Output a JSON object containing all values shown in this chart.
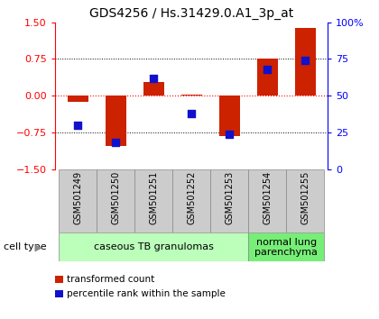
{
  "title": "GDS4256 / Hs.31429.0.A1_3p_at",
  "samples": [
    "GSM501249",
    "GSM501250",
    "GSM501251",
    "GSM501252",
    "GSM501253",
    "GSM501254",
    "GSM501255"
  ],
  "transformed_count": [
    -0.13,
    -1.02,
    0.28,
    0.02,
    -0.82,
    0.75,
    1.38
  ],
  "percentile_rank": [
    30,
    18,
    62,
    38,
    24,
    68,
    74
  ],
  "ylim_left": [
    -1.5,
    1.5
  ],
  "ylim_right": [
    0,
    100
  ],
  "yticks_left": [
    -1.5,
    -0.75,
    0,
    0.75,
    1.5
  ],
  "yticks_right": [
    0,
    25,
    50,
    75,
    100
  ],
  "ytick_labels_right": [
    "0",
    "25",
    "50",
    "75",
    "100%"
  ],
  "dotted_hlines": [
    0.75,
    -0.75
  ],
  "bar_color": "#cc2200",
  "dot_color": "#1111cc",
  "label_bg": "#cccccc",
  "cell_type_colors": [
    "#bbffbb",
    "#77ee77"
  ],
  "cell_type_labels": [
    "caseous TB granulomas",
    "normal lung\nparenchyma"
  ],
  "cell_type_sample_ranges": [
    [
      0,
      4
    ],
    [
      5,
      6
    ]
  ],
  "cell_type_label": "cell type",
  "legend_bar": "transformed count",
  "legend_dot": "percentile rank within the sample",
  "bar_width": 0.55,
  "dot_size": 40,
  "title_fontsize": 10,
  "tick_fontsize": 8,
  "label_fontsize": 7,
  "cell_fontsize": 8
}
